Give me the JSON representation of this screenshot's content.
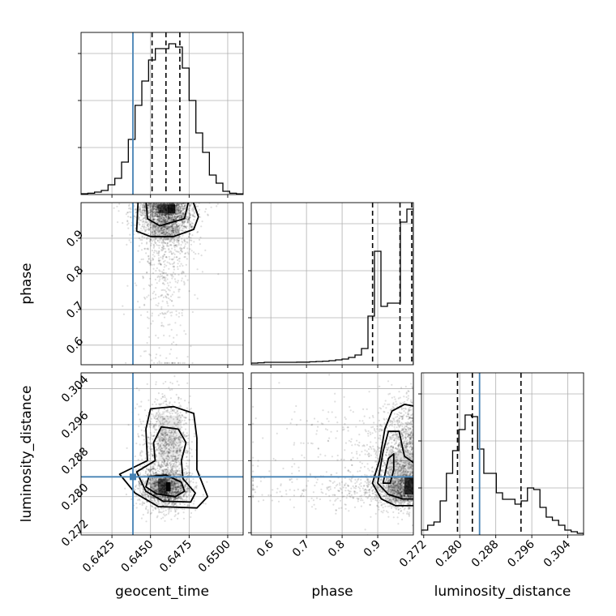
{
  "chart_data": {
    "type": "corner",
    "parameters": [
      "geocent_time",
      "phase",
      "luminosity_distance"
    ],
    "ranges": {
      "geocent_time": [
        0.6405,
        0.651
      ],
      "phase": [
        0.545,
        1.0
      ],
      "luminosity_distance": [
        0.2715,
        0.3075
      ]
    },
    "ticks": {
      "geocent_time": [
        0.6425,
        0.645,
        0.6475,
        0.65
      ],
      "phase": [
        0.6,
        0.7,
        0.8,
        0.9
      ],
      "luminosity_distance": [
        0.272,
        0.28,
        0.288,
        0.296,
        0.304
      ]
    },
    "tick_labels": {
      "geocent_time": [
        "0.6425",
        "0.6450",
        "0.6475",
        "0.6500"
      ],
      "phase": [
        "0.6",
        "0.7",
        "0.8",
        "0.9"
      ],
      "luminosity_distance": [
        "0.272",
        "0.280",
        "0.288",
        "0.296",
        "0.304"
      ]
    },
    "truths": {
      "geocent_time": 0.64386,
      "luminosity_distance": 0.2844
    },
    "quantiles": {
      "geocent_time": [
        0.6451,
        0.646,
        0.6469
      ],
      "phase": [
        0.8855,
        0.9625,
        0.9955
      ],
      "luminosity_distance": [
        0.2795,
        0.2828,
        0.2936
      ]
    },
    "histograms": {
      "geocent_time": [
        0.005,
        0.008,
        0.015,
        0.025,
        0.06,
        0.1,
        0.2,
        0.34,
        0.55,
        0.7,
        0.83,
        0.9,
        0.9,
        0.93,
        0.91,
        0.78,
        0.58,
        0.38,
        0.26,
        0.12,
        0.07,
        0.02,
        0.008,
        0.004
      ],
      "phase": [
        0.01,
        0.012,
        0.015,
        0.015,
        0.015,
        0.015,
        0.015,
        0.016,
        0.016,
        0.018,
        0.02,
        0.022,
        0.025,
        0.03,
        0.035,
        0.045,
        0.06,
        0.1,
        0.3,
        0.7,
        0.36,
        0.38,
        0.38,
        0.88,
        0.96
      ],
      "luminosity_distance": [
        0.03,
        0.06,
        0.08,
        0.21,
        0.38,
        0.52,
        0.65,
        0.74,
        0.73,
        0.53,
        0.38,
        0.38,
        0.26,
        0.22,
        0.22,
        0.19,
        0.21,
        0.29,
        0.28,
        0.17,
        0.11,
        0.09,
        0.06,
        0.03,
        0.02,
        0.01
      ]
    },
    "hist2d_peaks": {
      "phase_vs_geocent_time": {
        "x": 0.646,
        "y": 0.99
      },
      "luminosity_distance_vs_geocent_time": {
        "x": 0.6459,
        "y": 0.2822
      },
      "luminosity_distance_vs_phase": {
        "x": 0.995,
        "y": 0.2828
      }
    },
    "grid": true,
    "truth_color": "#4682b4",
    "hist_color": "#000000"
  }
}
